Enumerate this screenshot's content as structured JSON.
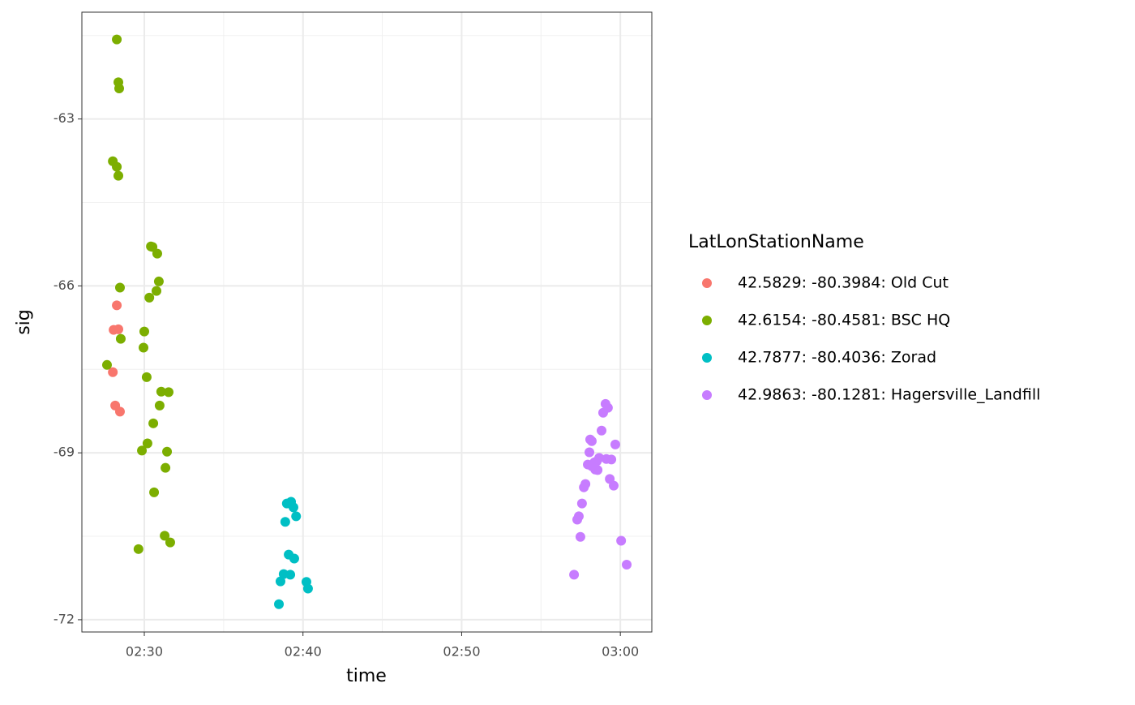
{
  "chart_data": {
    "type": "scatter",
    "x_label": "time",
    "y_label": "sig",
    "legend_title": "LatLonStationName",
    "legend_position": "right",
    "grid": true,
    "xlim": [
      "02:26:04",
      "03:01:59"
    ],
    "xticks": [
      "02:30",
      "02:40",
      "02:50",
      "03:00"
    ],
    "ylim": [
      -72.22,
      -61.08
    ],
    "yticks": [
      -63,
      -66,
      -69,
      -72
    ],
    "series": [
      {
        "name": "42.5829: -80.3984: Old Cut",
        "color": "#F8766D",
        "x": [
          "02:28:04",
          "02:28:22",
          "02:28:16",
          "02:28:01",
          "02:28:10",
          "02:28:28"
        ],
        "values": [
          -66.79,
          -66.78,
          -66.35,
          -67.55,
          -68.15,
          -68.26
        ]
      },
      {
        "name": "42.6154: -80.4581: BSC HQ",
        "color": "#7CAE00",
        "x": [
          "02:28:16",
          "02:28:22",
          "02:28:25",
          "02:28:01",
          "02:28:16",
          "02:28:22",
          "02:30:25",
          "02:30:31",
          "02:30:49",
          "02:30:55",
          "02:30:46",
          "02:30:19",
          "02:28:28",
          "02:28:31",
          "02:30:00",
          "02:29:57",
          "02:27:39",
          "02:30:09",
          "02:31:04",
          "02:31:32",
          "02:30:58",
          "02:30:34",
          "02:30:12",
          "02:29:51",
          "02:31:26",
          "02:31:20",
          "02:30:37",
          "02:31:17",
          "02:31:38",
          "02:29:38"
        ],
        "values": [
          -61.57,
          -62.34,
          -62.45,
          -63.76,
          -63.86,
          -64.02,
          -65.29,
          -65.3,
          -65.42,
          -65.92,
          -66.09,
          -66.21,
          -66.03,
          -66.95,
          -66.82,
          -67.11,
          -67.42,
          -67.64,
          -67.9,
          -67.91,
          -68.15,
          -68.47,
          -68.83,
          -68.96,
          -68.98,
          -69.27,
          -69.71,
          -70.49,
          -70.61,
          -70.73
        ]
      },
      {
        "name": "42.7877: -80.4036: Zorad",
        "color": "#00BFC4",
        "x": [
          "02:39:15",
          "02:38:59",
          "02:39:24",
          "02:39:34",
          "02:38:53",
          "02:39:06",
          "02:39:27",
          "02:38:47",
          "02:39:12",
          "02:38:35",
          "02:40:13",
          "02:40:19",
          "02:38:29"
        ],
        "values": [
          -69.88,
          -69.91,
          -69.98,
          -70.14,
          -70.24,
          -70.83,
          -70.9,
          -71.18,
          -71.19,
          -71.31,
          -71.32,
          -71.44,
          -71.72
        ]
      },
      {
        "name": "42.9863: -80.1281: Hagersville_Landfill",
        "color": "#C77CFF",
        "x": [
          "02:59:04",
          "02:59:13",
          "02:58:55",
          "02:58:49",
          "02:58:06",
          "02:58:12",
          "02:59:41",
          "02:58:03",
          "02:58:40",
          "02:59:07",
          "02:59:26",
          "02:58:31",
          "02:58:22",
          "02:57:57",
          "02:58:12",
          "02:58:25",
          "02:58:34",
          "02:57:48",
          "02:57:42",
          "02:59:20",
          "02:59:35",
          "02:57:35",
          "02:57:23",
          "02:57:17",
          "02:57:29",
          "03:00:03",
          "03:00:24",
          "02:57:05"
        ],
        "values": [
          -68.12,
          -68.19,
          -68.28,
          -68.6,
          -68.76,
          -68.79,
          -68.85,
          -68.99,
          -69.09,
          -69.11,
          -69.12,
          -69.15,
          -69.17,
          -69.21,
          -69.24,
          -69.3,
          -69.31,
          -69.56,
          -69.62,
          -69.47,
          -69.59,
          -69.91,
          -70.14,
          -70.2,
          -70.51,
          -70.58,
          -71.01,
          -71.19
        ]
      }
    ]
  }
}
